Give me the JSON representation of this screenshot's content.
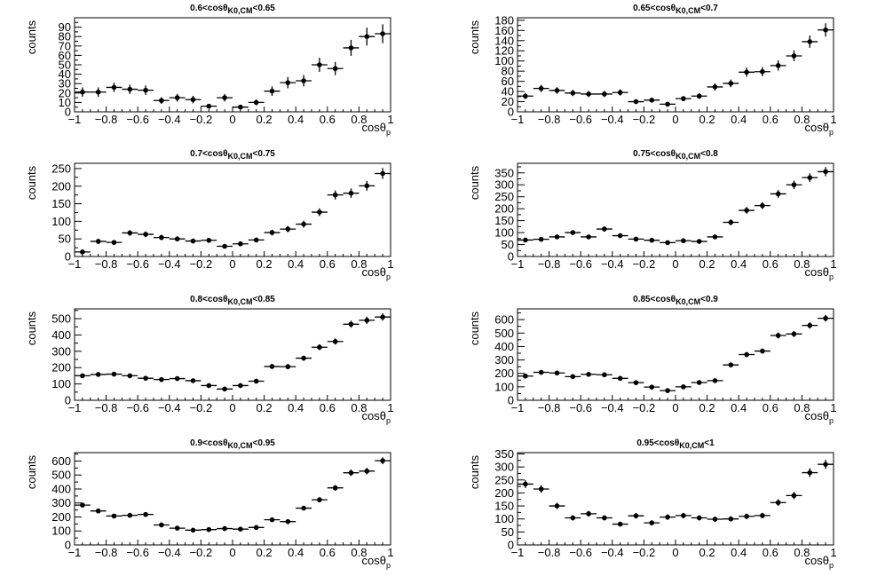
{
  "figure": {
    "x_label": "cosθ",
    "x_label_sub": "p",
    "y_label": "counts"
  },
  "chart_data": [
    {
      "type": "scatter",
      "title": {
        "prefix": "0.6<cosθ",
        "sub": "K0,CM",
        "suffix": "<0.65"
      },
      "xlabel": "cosθp",
      "ylabel": "counts",
      "xlim": [
        -1,
        1
      ],
      "ylim": [
        0,
        100
      ],
      "xticks": [
        -1,
        -0.8,
        -0.6,
        -0.4,
        -0.2,
        0,
        0.2,
        0.4,
        0.6,
        0.8,
        1
      ],
      "yticks": [
        0,
        10,
        20,
        30,
        40,
        50,
        60,
        70,
        80,
        90
      ],
      "x": [
        -0.95,
        -0.85,
        -0.75,
        -0.65,
        -0.55,
        -0.45,
        -0.35,
        -0.25,
        -0.15,
        -0.05,
        0.05,
        0.15,
        0.25,
        0.35,
        0.45,
        0.55,
        0.65,
        0.75,
        0.85,
        0.95
      ],
      "y": [
        21,
        21,
        26,
        24,
        23,
        12,
        15,
        13,
        6,
        15,
        5,
        10,
        22,
        31,
        33,
        50,
        46,
        68,
        80,
        83
      ],
      "err": [
        5,
        5,
        5,
        5,
        5,
        3.5,
        4,
        4,
        2.5,
        4,
        2.5,
        3,
        5,
        6,
        6,
        7.5,
        7,
        8.5,
        9.5,
        10
      ]
    },
    {
      "type": "scatter",
      "title": {
        "prefix": "0.65<cosθ",
        "sub": "K0,CM",
        "suffix": "<0.7"
      },
      "xlabel": "cosθp",
      "ylabel": "counts",
      "xlim": [
        -1,
        1
      ],
      "ylim": [
        0,
        185
      ],
      "xticks": [
        -1,
        -0.8,
        -0.6,
        -0.4,
        -0.2,
        0,
        0.2,
        0.4,
        0.6,
        0.8,
        1
      ],
      "yticks": [
        0,
        20,
        40,
        60,
        80,
        100,
        120,
        140,
        160,
        180
      ],
      "x": [
        -0.95,
        -0.85,
        -0.75,
        -0.65,
        -0.55,
        -0.45,
        -0.35,
        -0.25,
        -0.15,
        -0.05,
        0.05,
        0.15,
        0.25,
        0.35,
        0.45,
        0.55,
        0.65,
        0.75,
        0.85,
        0.95
      ],
      "y": [
        31,
        46,
        42,
        37,
        35,
        35,
        38,
        20,
        23,
        15,
        26,
        31,
        49,
        56,
        78,
        79,
        91,
        110,
        138,
        161
      ],
      "err": [
        6,
        7,
        6.5,
        6,
        6,
        6,
        6,
        4.5,
        5,
        4,
        5,
        5.5,
        7,
        7.5,
        9,
        9,
        10,
        10.5,
        12,
        13
      ]
    },
    {
      "type": "scatter",
      "title": {
        "prefix": "0.7<cosθ",
        "sub": "K0,CM",
        "suffix": "<0.75"
      },
      "xlabel": "cosθp",
      "ylabel": "counts",
      "xlim": [
        -1,
        1
      ],
      "ylim": [
        0,
        265
      ],
      "xticks": [
        -1,
        -0.8,
        -0.6,
        -0.4,
        -0.2,
        0,
        0.2,
        0.4,
        0.6,
        0.8,
        1
      ],
      "yticks": [
        0,
        50,
        100,
        150,
        200,
        250
      ],
      "x": [
        -0.95,
        -0.85,
        -0.75,
        -0.65,
        -0.55,
        -0.45,
        -0.35,
        -0.25,
        -0.15,
        -0.05,
        0.05,
        0.15,
        0.25,
        0.35,
        0.45,
        0.55,
        0.65,
        0.75,
        0.85,
        0.95
      ],
      "y": [
        13,
        43,
        40,
        67,
        63,
        54,
        50,
        44,
        46,
        29,
        36,
        47,
        68,
        78,
        92,
        126,
        175,
        180,
        201,
        236
      ],
      "err": [
        4,
        7,
        6.5,
        8,
        8,
        7.5,
        7,
        6.5,
        7,
        5.5,
        6,
        7,
        8,
        9,
        10,
        11,
        13,
        13.5,
        14,
        15.5
      ]
    },
    {
      "type": "scatter",
      "title": {
        "prefix": "0.75<cosθ",
        "sub": "K0,CM",
        "suffix": "<0.8"
      },
      "xlabel": "cosθp",
      "ylabel": "counts",
      "xlim": [
        -1,
        1
      ],
      "ylim": [
        0,
        390
      ],
      "xticks": [
        -1,
        -0.8,
        -0.6,
        -0.4,
        -0.2,
        0,
        0.2,
        0.4,
        0.6,
        0.8,
        1
      ],
      "yticks": [
        0,
        50,
        100,
        150,
        200,
        250,
        300,
        350
      ],
      "x": [
        -0.95,
        -0.85,
        -0.75,
        -0.65,
        -0.55,
        -0.45,
        -0.35,
        -0.25,
        -0.15,
        -0.05,
        0.05,
        0.15,
        0.25,
        0.35,
        0.45,
        0.55,
        0.65,
        0.75,
        0.85,
        0.95
      ],
      "y": [
        69,
        72,
        82,
        100,
        82,
        115,
        87,
        73,
        68,
        58,
        66,
        63,
        82,
        143,
        193,
        213,
        262,
        300,
        330,
        355
      ],
      "err": [
        8,
        8.5,
        9,
        10,
        9,
        10.5,
        9,
        8.5,
        8,
        7.5,
        8,
        8,
        9,
        12,
        14,
        14.5,
        16,
        17.5,
        18,
        19
      ]
    },
    {
      "type": "scatter",
      "title": {
        "prefix": "0.8<cosθ",
        "sub": "K0,CM",
        "suffix": "<0.85"
      },
      "xlabel": "cosθp",
      "ylabel": "counts",
      "xlim": [
        -1,
        1
      ],
      "ylim": [
        0,
        560
      ],
      "xticks": [
        -1,
        -0.8,
        -0.6,
        -0.4,
        -0.2,
        0,
        0.2,
        0.4,
        0.6,
        0.8,
        1
      ],
      "yticks": [
        0,
        100,
        200,
        300,
        400,
        500
      ],
      "x": [
        -0.95,
        -0.85,
        -0.75,
        -0.65,
        -0.55,
        -0.45,
        -0.35,
        -0.25,
        -0.15,
        -0.05,
        0.05,
        0.15,
        0.25,
        0.35,
        0.45,
        0.55,
        0.65,
        0.75,
        0.85,
        0.95
      ],
      "y": [
        150,
        158,
        160,
        150,
        135,
        127,
        133,
        120,
        90,
        69,
        90,
        117,
        207,
        206,
        258,
        325,
        360,
        466,
        490,
        510
      ],
      "err": [
        12,
        12.5,
        12.5,
        12,
        11.5,
        11,
        11.5,
        11,
        9.5,
        8.5,
        9.5,
        11,
        14.5,
        14.5,
        16,
        18,
        19,
        21.5,
        22,
        22.5
      ]
    },
    {
      "type": "scatter",
      "title": {
        "prefix": "0.85<cosθ",
        "sub": "K0,CM",
        "suffix": "<0.9"
      },
      "xlabel": "cosθp",
      "ylabel": "counts",
      "xlim": [
        -1,
        1
      ],
      "ylim": [
        0,
        680
      ],
      "xticks": [
        -1,
        -0.8,
        -0.6,
        -0.4,
        -0.2,
        0,
        0.2,
        0.4,
        0.6,
        0.8,
        1
      ],
      "yticks": [
        0,
        100,
        200,
        300,
        400,
        500,
        600
      ],
      "x": [
        -0.95,
        -0.85,
        -0.75,
        -0.65,
        -0.55,
        -0.45,
        -0.35,
        -0.25,
        -0.15,
        -0.05,
        0.05,
        0.15,
        0.25,
        0.35,
        0.45,
        0.55,
        0.65,
        0.75,
        0.85,
        0.95
      ],
      "y": [
        180,
        208,
        203,
        176,
        193,
        190,
        163,
        131,
        98,
        72,
        100,
        132,
        146,
        263,
        340,
        366,
        482,
        493,
        557,
        610
      ],
      "err": [
        13,
        14.5,
        14,
        13,
        14,
        14,
        13,
        11.5,
        10,
        8.5,
        10,
        11.5,
        12,
        16,
        18.5,
        19,
        22,
        22,
        23.5,
        24.5
      ]
    },
    {
      "type": "scatter",
      "title": {
        "prefix": "0.9<cosθ",
        "sub": "K0,CM",
        "suffix": "<0.95"
      },
      "xlabel": "cosθp",
      "ylabel": "counts",
      "xlim": [
        -1,
        1
      ],
      "ylim": [
        0,
        660
      ],
      "xticks": [
        -1,
        -0.8,
        -0.6,
        -0.4,
        -0.2,
        0,
        0.2,
        0.4,
        0.6,
        0.8,
        1
      ],
      "yticks": [
        0,
        100,
        200,
        300,
        400,
        500,
        600
      ],
      "x": [
        -0.95,
        -0.85,
        -0.75,
        -0.65,
        -0.55,
        -0.45,
        -0.35,
        -0.25,
        -0.15,
        -0.05,
        0.05,
        0.15,
        0.25,
        0.35,
        0.45,
        0.55,
        0.65,
        0.75,
        0.85,
        0.95
      ],
      "y": [
        285,
        243,
        207,
        212,
        218,
        143,
        120,
        106,
        110,
        117,
        113,
        125,
        180,
        167,
        263,
        323,
        408,
        516,
        528,
        602
      ],
      "err": [
        17,
        15.5,
        14.5,
        14.5,
        14.5,
        12,
        11,
        10.5,
        10.5,
        11,
        10.5,
        11,
        13.5,
        13,
        16,
        18,
        20,
        22.5,
        23,
        24.5
      ]
    },
    {
      "type": "scatter",
      "title": {
        "prefix": "0.95<cosθ",
        "sub": "K0,CM",
        "suffix": "<1"
      },
      "xlabel": "cosθp",
      "ylabel": "counts",
      "xlim": [
        -1,
        1
      ],
      "ylim": [
        0,
        355
      ],
      "xticks": [
        -1,
        -0.8,
        -0.6,
        -0.4,
        -0.2,
        0,
        0.2,
        0.4,
        0.6,
        0.8,
        1
      ],
      "yticks": [
        0,
        50,
        100,
        150,
        200,
        250,
        300,
        350
      ],
      "x": [
        -0.95,
        -0.85,
        -0.75,
        -0.65,
        -0.55,
        -0.45,
        -0.35,
        -0.25,
        -0.15,
        -0.05,
        0.05,
        0.15,
        0.25,
        0.35,
        0.45,
        0.55,
        0.65,
        0.75,
        0.85,
        0.95
      ],
      "y": [
        234,
        215,
        150,
        104,
        120,
        104,
        80,
        112,
        85,
        107,
        113,
        104,
        99,
        100,
        110,
        113,
        163,
        190,
        278,
        310
      ],
      "err": [
        15,
        14.5,
        12,
        10,
        11,
        10,
        9,
        10.5,
        9,
        10.5,
        10.5,
        10,
        10,
        10,
        10.5,
        10.5,
        13,
        14,
        17,
        18
      ]
    }
  ]
}
